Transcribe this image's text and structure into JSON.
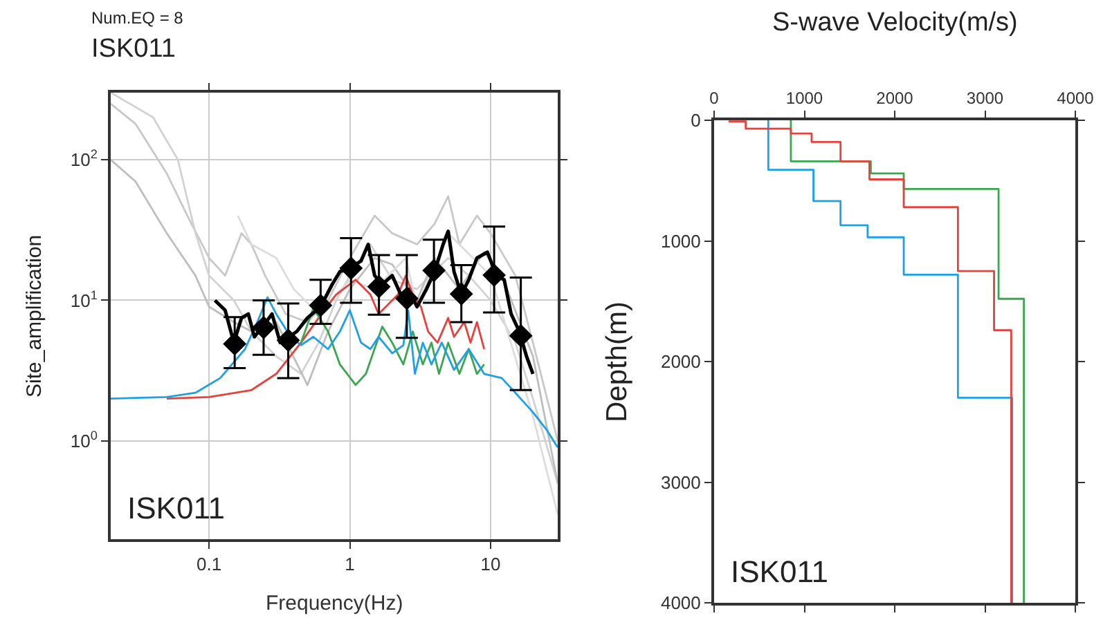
{
  "chart_data": [
    {
      "type": "line",
      "title": "ISK011",
      "subtitle": "Num.EQ = 8",
      "xlabel": "Frequency(Hz)",
      "ylabel": "Site_amplification",
      "annotations": [
        "ISK011"
      ],
      "log": "xy",
      "grid": true,
      "xlim": [
        0.02,
        30
      ],
      "ylim": [
        0.2,
        300
      ],
      "xticks": [
        0.1,
        1,
        10
      ],
      "yticks": [
        {
          "value": 1,
          "label": "10$^{0}$"
        },
        {
          "value": 10,
          "label": "10$^{1}$"
        },
        {
          "value": 100,
          "label": "10$^{2}$"
        }
      ],
      "series": [
        {
          "color": "#c8c8c8",
          "x": [
            0.02,
            0.03,
            0.05,
            0.07,
            0.1,
            0.13,
            0.17,
            0.2,
            0.25,
            0.35,
            0.5,
            0.7,
            1,
            1.5,
            2,
            3,
            4,
            5,
            6,
            8,
            10,
            15,
            20,
            30
          ],
          "values": [
            250,
            180,
            80,
            40,
            20,
            15,
            30,
            25,
            15,
            8,
            7,
            10,
            20,
            40,
            30,
            25,
            35,
            55,
            25,
            40,
            30,
            15,
            5,
            1
          ]
        },
        {
          "color": "#d2d2d2",
          "x": [
            0.02,
            0.04,
            0.06,
            0.08,
            0.1,
            0.15,
            0.2,
            0.3,
            0.45,
            0.6,
            0.8,
            1,
            1.4,
            2,
            3,
            5,
            7,
            10,
            15,
            20,
            30
          ],
          "values": [
            300,
            200,
            100,
            30,
            15,
            10,
            6,
            4,
            3,
            5,
            10,
            15,
            25,
            14,
            12,
            20,
            15,
            10,
            5,
            2,
            0.5
          ]
        },
        {
          "color": "#bebebe",
          "x": [
            0.02,
            0.03,
            0.05,
            0.08,
            0.1,
            0.15,
            0.2,
            0.3,
            0.5,
            0.7,
            1,
            1.5,
            2,
            3,
            4,
            6,
            9,
            12,
            20,
            30
          ],
          "values": [
            100,
            70,
            30,
            15,
            9,
            7,
            6,
            7,
            2.5,
            6,
            12,
            20,
            18,
            10,
            20,
            12,
            22,
            15,
            4,
            0.5
          ]
        },
        {
          "color": "#dcdcdc",
          "x": [
            0.16,
            0.2,
            0.3,
            0.4,
            0.6,
            1,
            1.5,
            2.5,
            3,
            5,
            10,
            20,
            30
          ],
          "values": [
            40,
            25,
            20,
            12,
            8,
            14,
            12,
            20,
            9,
            30,
            15,
            1.5,
            0.3
          ]
        },
        {
          "color": "#e8403c",
          "x": [
            0.05,
            0.1,
            0.2,
            0.3,
            0.45,
            0.6,
            0.8,
            1.1,
            1.4,
            1.6,
            1.9,
            2.2,
            2.5,
            2.8,
            3.2,
            3.6,
            4.2,
            5,
            5.5,
            6.5,
            7.2,
            8,
            9
          ],
          "values": [
            2,
            2.05,
            2.3,
            3,
            5,
            7.5,
            11,
            14,
            11,
            8,
            9.5,
            11,
            15,
            11,
            9,
            6,
            5,
            7.5,
            5.5,
            7,
            5,
            7,
            4.5
          ]
        },
        {
          "color": "#3aa650",
          "x": [
            0.45,
            0.55,
            0.7,
            0.85,
            1.1,
            1.3,
            1.7,
            2,
            2.4,
            2.8,
            3.3,
            3.8,
            4.3,
            5,
            6,
            7,
            8,
            9
          ],
          "values": [
            5,
            8.8,
            6,
            3.5,
            2.5,
            3,
            6.5,
            5,
            3.5,
            6,
            3.5,
            5,
            3,
            5,
            3,
            4.5,
            3,
            3.5
          ]
        },
        {
          "color": "#1ea0e6",
          "x": [
            0.02,
            0.05,
            0.08,
            0.12,
            0.18,
            0.22,
            0.26,
            0.3,
            0.38,
            0.45,
            0.55,
            0.7,
            0.85,
            1,
            1.2,
            1.4,
            1.6,
            2,
            2.4,
            2.6,
            2.9,
            3.3,
            3.8,
            4.5,
            5.5,
            7,
            9,
            12,
            15,
            20,
            25,
            30
          ],
          "values": [
            2,
            2.05,
            2.2,
            2.8,
            4.5,
            7,
            10.5,
            8,
            5.5,
            4.8,
            5.5,
            4.5,
            6,
            8.5,
            5,
            4.5,
            5.5,
            4.2,
            4.8,
            8.5,
            3,
            5,
            3.5,
            5,
            3.2,
            4.5,
            3,
            2.8,
            2.2,
            1.6,
            1.2,
            0.9
          ]
        },
        {
          "color": "#000000",
          "x": [
            0.11,
            0.13,
            0.15,
            0.17,
            0.19,
            0.21,
            0.24,
            0.28,
            0.32,
            0.37,
            0.42,
            0.5,
            0.62,
            0.75,
            0.85,
            1,
            1.2,
            1.35,
            1.5,
            1.7,
            2,
            2.3,
            2.6,
            3,
            3.5,
            4,
            4.6,
            5,
            5.5,
            6.2,
            7,
            8,
            9.5,
            11,
            12.5,
            14,
            16,
            18,
            20
          ],
          "values": [
            10,
            8.5,
            5,
            7.5,
            8,
            5.5,
            6.5,
            8,
            5,
            5.5,
            6,
            7.5,
            9,
            13,
            16,
            17,
            19,
            25,
            15,
            13,
            15,
            11,
            12,
            9,
            12,
            16,
            25,
            31,
            16,
            11,
            14,
            20,
            22,
            15,
            14,
            8,
            6,
            4,
            3
          ]
        },
        {
          "type": "scatter",
          "marker": "diamond",
          "color": "#000000",
          "x": [
            0.152,
            0.244,
            0.365,
            0.62,
            1.02,
            1.61,
            2.54,
            3.96,
            6.2,
            10.6,
            16.4
          ],
          "values": [
            4.9,
            6.4,
            5.2,
            9.2,
            16.9,
            12.5,
            10.3,
            16.3,
            11.1,
            15.1,
            5.6
          ],
          "errors": [
            [
              3.3,
              7.6
            ],
            [
              4.1,
              10
            ],
            [
              2.8,
              9.5
            ],
            [
              6.8,
              14
            ],
            [
              9.6,
              27.7
            ],
            [
              7.9,
              21
            ],
            [
              5.4,
              21
            ],
            [
              9.6,
              27
            ],
            [
              7,
              17.8
            ],
            [
              8.2,
              33.5
            ],
            [
              2.3,
              14.5
            ]
          ]
        }
      ]
    },
    {
      "type": "line",
      "xlabel": "S-wave Velocity(m/s)",
      "ylabel": "Depth(m)",
      "annotations": [
        "ISK011"
      ],
      "xlim": [
        0,
        4000
      ],
      "ylim": [
        4000,
        0
      ],
      "xticks": [
        0,
        1000,
        2000,
        3000,
        4000
      ],
      "yticks": [
        0,
        1000,
        2000,
        3000,
        4000
      ],
      "series": [
        {
          "color": "#1ea0e6",
          "x": [
            600,
            600,
            1100,
            1100,
            1400,
            1400,
            1700,
            1700,
            2100,
            2100,
            2700,
            2700,
            3300,
            3300
          ],
          "values": [
            0,
            410,
            410,
            670,
            670,
            870,
            870,
            970,
            970,
            1280,
            1280,
            2300,
            2300,
            4000
          ]
        },
        {
          "color": "#3aa650",
          "x": [
            850,
            850,
            1735,
            1735,
            2100,
            2100,
            3150,
            3150,
            3430,
            3430
          ],
          "values": [
            0,
            340,
            340,
            440,
            440,
            570,
            570,
            1480,
            1480,
            4000
          ]
        },
        {
          "color": "#e8403c",
          "x": [
            160,
            350,
            350,
            850,
            850,
            1080,
            1080,
            1400,
            1400,
            1720,
            1720,
            2100,
            2100,
            2700,
            2700,
            3100,
            3100,
            3290,
            3290
          ],
          "values": [
            10,
            10,
            70,
            70,
            110,
            110,
            180,
            180,
            340,
            340,
            490,
            490,
            720,
            720,
            1250,
            1250,
            1740,
            1740,
            4000
          ]
        }
      ]
    }
  ]
}
